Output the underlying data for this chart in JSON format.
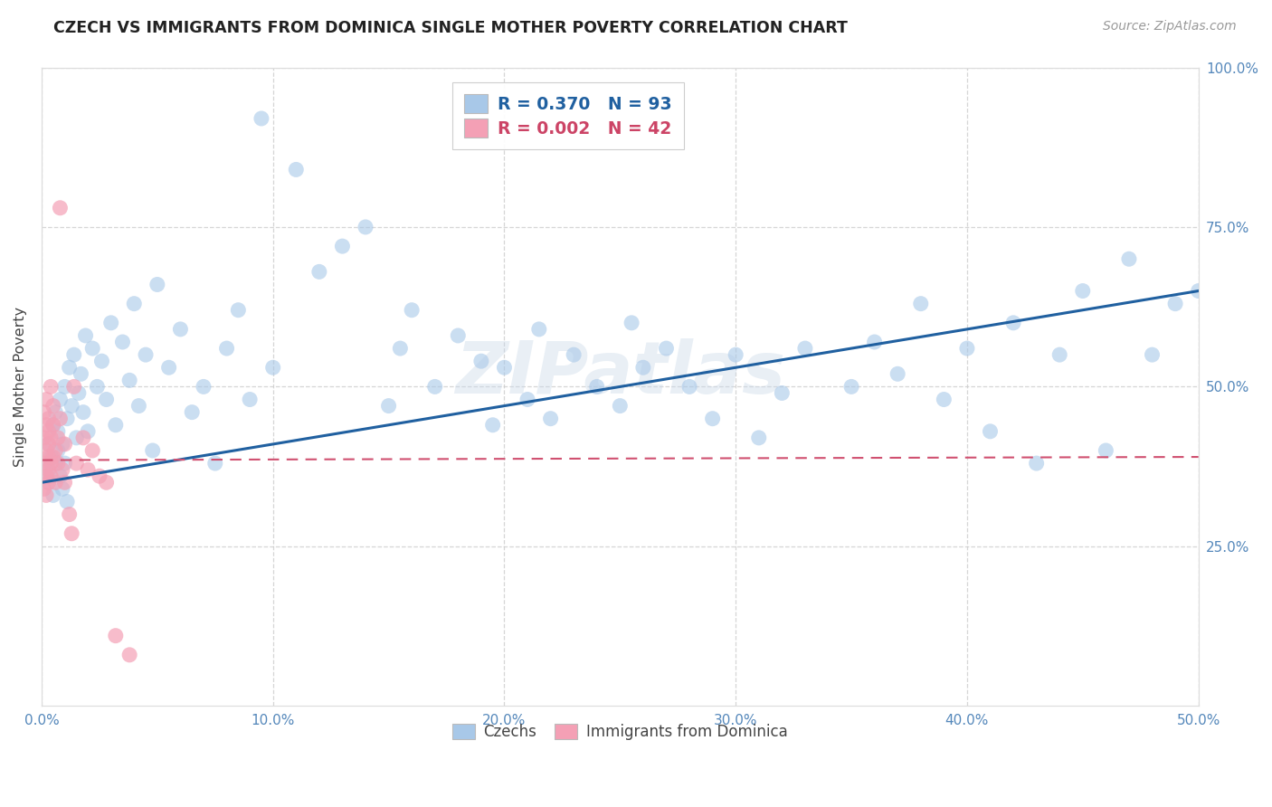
{
  "title": "CZECH VS IMMIGRANTS FROM DOMINICA SINGLE MOTHER POVERTY CORRELATION CHART",
  "source": "Source: ZipAtlas.com",
  "ylabel": "Single Mother Poverty",
  "xlim": [
    0.0,
    0.5
  ],
  "ylim": [
    0.0,
    1.0
  ],
  "xtick_labels": [
    "0.0%",
    "10.0%",
    "20.0%",
    "30.0%",
    "40.0%",
    "50.0%"
  ],
  "xtick_values": [
    0.0,
    0.1,
    0.2,
    0.3,
    0.4,
    0.5
  ],
  "ytick_labels": [
    "25.0%",
    "50.0%",
    "75.0%",
    "100.0%"
  ],
  "ytick_values": [
    0.25,
    0.5,
    0.75,
    1.0
  ],
  "legend_labels": [
    "Czechs",
    "Immigrants from Dominica"
  ],
  "r_czech": 0.37,
  "n_czech": 93,
  "r_dominica": 0.002,
  "n_dominica": 42,
  "blue_color": "#A8C8E8",
  "pink_color": "#F4A0B5",
  "blue_line_color": "#2060A0",
  "pink_line_color": "#D05070",
  "watermark": "ZIPatlas",
  "background_color": "#FFFFFF",
  "grid_color": "#CCCCCC",
  "title_color": "#222222",
  "czechs_x": [
    0.002,
    0.003,
    0.003,
    0.004,
    0.005,
    0.005,
    0.006,
    0.006,
    0.007,
    0.007,
    0.008,
    0.008,
    0.009,
    0.009,
    0.01,
    0.01,
    0.011,
    0.011,
    0.012,
    0.013,
    0.014,
    0.015,
    0.016,
    0.017,
    0.018,
    0.019,
    0.02,
    0.022,
    0.024,
    0.026,
    0.028,
    0.03,
    0.032,
    0.035,
    0.038,
    0.04,
    0.042,
    0.045,
    0.048,
    0.05,
    0.055,
    0.06,
    0.065,
    0.07,
    0.075,
    0.08,
    0.085,
    0.09,
    0.095,
    0.1,
    0.11,
    0.12,
    0.13,
    0.14,
    0.15,
    0.155,
    0.16,
    0.17,
    0.18,
    0.19,
    0.195,
    0.2,
    0.21,
    0.215,
    0.22,
    0.23,
    0.24,
    0.25,
    0.255,
    0.26,
    0.27,
    0.28,
    0.29,
    0.3,
    0.31,
    0.32,
    0.33,
    0.35,
    0.36,
    0.37,
    0.38,
    0.39,
    0.4,
    0.41,
    0.42,
    0.43,
    0.44,
    0.45,
    0.46,
    0.47,
    0.48,
    0.49,
    0.5
  ],
  "czechs_y": [
    0.37,
    0.41,
    0.35,
    0.39,
    0.33,
    0.44,
    0.38,
    0.46,
    0.4,
    0.43,
    0.36,
    0.48,
    0.41,
    0.34,
    0.5,
    0.38,
    0.45,
    0.32,
    0.53,
    0.47,
    0.55,
    0.42,
    0.49,
    0.52,
    0.46,
    0.58,
    0.43,
    0.56,
    0.5,
    0.54,
    0.48,
    0.6,
    0.44,
    0.57,
    0.51,
    0.63,
    0.47,
    0.55,
    0.4,
    0.66,
    0.53,
    0.59,
    0.46,
    0.5,
    0.38,
    0.56,
    0.62,
    0.48,
    0.92,
    0.53,
    0.84,
    0.68,
    0.72,
    0.75,
    0.47,
    0.56,
    0.62,
    0.5,
    0.58,
    0.54,
    0.44,
    0.53,
    0.48,
    0.59,
    0.45,
    0.55,
    0.5,
    0.47,
    0.6,
    0.53,
    0.56,
    0.5,
    0.45,
    0.55,
    0.42,
    0.49,
    0.56,
    0.5,
    0.57,
    0.52,
    0.63,
    0.48,
    0.56,
    0.43,
    0.6,
    0.38,
    0.55,
    0.65,
    0.4,
    0.7,
    0.55,
    0.63,
    0.65
  ],
  "dominica_x": [
    0.001,
    0.001,
    0.001,
    0.001,
    0.002,
    0.002,
    0.002,
    0.002,
    0.002,
    0.003,
    0.003,
    0.003,
    0.003,
    0.003,
    0.003,
    0.004,
    0.004,
    0.004,
    0.004,
    0.005,
    0.005,
    0.005,
    0.006,
    0.006,
    0.007,
    0.007,
    0.008,
    0.008,
    0.009,
    0.01,
    0.01,
    0.012,
    0.013,
    0.014,
    0.015,
    0.018,
    0.02,
    0.022,
    0.025,
    0.028,
    0.032,
    0.038
  ],
  "dominica_y": [
    0.38,
    0.42,
    0.34,
    0.46,
    0.4,
    0.36,
    0.44,
    0.33,
    0.48,
    0.41,
    0.37,
    0.45,
    0.39,
    0.43,
    0.35,
    0.5,
    0.38,
    0.42,
    0.36,
    0.44,
    0.39,
    0.47,
    0.4,
    0.35,
    0.42,
    0.38,
    0.45,
    0.78,
    0.37,
    0.41,
    0.35,
    0.3,
    0.27,
    0.5,
    0.38,
    0.42,
    0.37,
    0.4,
    0.36,
    0.35,
    0.11,
    0.08
  ],
  "czech_trend_x0": 0.0,
  "czech_trend_y0": 0.35,
  "czech_trend_x1": 0.5,
  "czech_trend_y1": 0.65,
  "dominica_trend_x0": 0.0,
  "dominica_trend_y0": 0.385,
  "dominica_trend_x1": 0.5,
  "dominica_trend_y1": 0.39
}
